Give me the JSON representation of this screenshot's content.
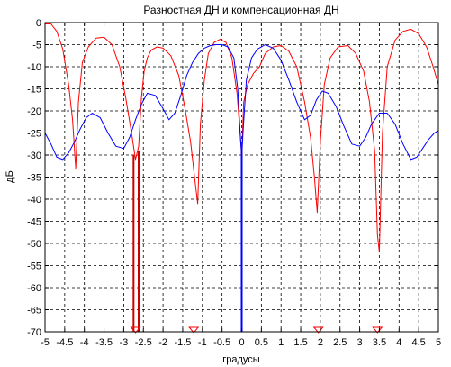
{
  "chart_data": {
    "type": "line",
    "title": "Разностная ДН и компенсационная ДН",
    "xlabel": "градусы",
    "ylabel": "дБ",
    "xlim": [
      -5,
      5
    ],
    "ylim": [
      -70,
      0
    ],
    "grid": true,
    "grid_style": "dashed",
    "x_ticks": [
      -5,
      -4.5,
      -4,
      -3.5,
      -3,
      -2.5,
      -2,
      -1.5,
      -1,
      -0.5,
      0,
      0.5,
      1,
      1.5,
      2,
      2.5,
      3,
      3.5,
      4,
      4.5,
      5
    ],
    "x_tick_labels": [
      "-5",
      "-4.5",
      "-4",
      "-3.5",
      "-3",
      "-2.5",
      "-2",
      "-1.5",
      "-1",
      "-0.5",
      "0",
      "0.5",
      "1",
      "1.5",
      "2",
      "2.5",
      "3",
      "3.5",
      "4",
      "4.5",
      "5"
    ],
    "y_ticks": [
      0,
      -5,
      -10,
      -15,
      -20,
      -25,
      -30,
      -35,
      -40,
      -45,
      -50,
      -55,
      -60,
      -65,
      -70
    ],
    "y_tick_labels": [
      "0",
      "-5",
      "-10",
      "-15",
      "-20",
      "-25",
      "-30",
      "-35",
      "-40",
      "-45",
      "-50",
      "-55",
      "-60",
      "-65",
      "-70"
    ],
    "series": [
      {
        "color": "#ff0000",
        "x": [
          -5,
          -4.85,
          -4.7,
          -4.55,
          -4.4,
          -4.3,
          -4.22,
          -4.15,
          -4.05,
          -3.9,
          -3.7,
          -3.5,
          -3.3,
          -3.1,
          -2.95,
          -2.8,
          -2.7,
          -2.62,
          -2.55,
          -2.48,
          -2.4,
          -2.3,
          -2.15,
          -2.0,
          -1.8,
          -1.6,
          -1.45,
          -1.3,
          -1.2,
          -1.12,
          -1.05,
          -0.95,
          -0.85,
          -0.7,
          -0.55,
          -0.4,
          -0.25,
          -0.12,
          -0.05,
          0,
          0.05,
          0.15,
          0.3,
          0.45,
          0.6,
          0.8,
          1.0,
          1.2,
          1.4,
          1.6,
          1.75,
          1.85,
          1.92,
          2.0,
          2.1,
          2.25,
          2.45,
          2.7,
          2.9,
          3.1,
          3.25,
          3.38,
          3.45,
          3.5,
          3.58,
          3.7,
          3.9,
          4.1,
          4.3,
          4.5,
          4.7,
          4.85,
          5.0
        ],
        "y": [
          -0.3,
          -0.3,
          -2,
          -6,
          -14,
          -22,
          -33,
          -18,
          -9,
          -5.5,
          -3.5,
          -3.3,
          -5,
          -10,
          -17,
          -25,
          -31,
          -28,
          -17,
          -11,
          -8,
          -6.2,
          -5.5,
          -5.8,
          -7.5,
          -12,
          -19,
          -27,
          -35,
          -41,
          -23,
          -13,
          -7,
          -4.5,
          -3.8,
          -4.5,
          -8,
          -16,
          -24,
          -30,
          -18,
          -14,
          -11.5,
          -10,
          -7,
          -5.5,
          -5.2,
          -6.5,
          -10,
          -18,
          -26,
          -35,
          -43,
          -27,
          -14,
          -8,
          -5.5,
          -5.2,
          -7,
          -11,
          -18,
          -29,
          -48,
          -52,
          -25,
          -10,
          -4,
          -2,
          -1.5,
          -2.5,
          -5.5,
          -9.5,
          -14
        ]
      },
      {
        "color": "#0000ff",
        "x": [
          -5,
          -4.85,
          -4.7,
          -4.55,
          -4.4,
          -4.25,
          -4.1,
          -3.95,
          -3.8,
          -3.6,
          -3.4,
          -3.2,
          -3.0,
          -2.85,
          -2.7,
          -2.55,
          -2.4,
          -2.2,
          -2.0,
          -1.85,
          -1.7,
          -1.55,
          -1.4,
          -1.25,
          -1.1,
          -0.95,
          -0.8,
          -0.65,
          -0.5,
          -0.35,
          -0.2,
          -0.1,
          -0.04,
          0,
          0.04,
          0.12,
          0.25,
          0.4,
          0.6,
          0.8,
          1.0,
          1.2,
          1.4,
          1.6,
          1.75,
          1.9,
          2.05,
          2.2,
          2.4,
          2.6,
          2.8,
          3.0,
          3.15,
          3.3,
          3.5,
          3.7,
          3.9,
          4.1,
          4.3,
          4.45,
          4.6,
          4.75,
          4.9,
          5.0
        ],
        "y": [
          -25,
          -27.5,
          -30.5,
          -31,
          -29.5,
          -27,
          -24,
          -21.5,
          -20.5,
          -21.5,
          -25,
          -28,
          -28.5,
          -26,
          -22,
          -18.5,
          -16,
          -16.5,
          -19.5,
          -22,
          -20.5,
          -16.5,
          -12,
          -9,
          -7,
          -5.8,
          -5.2,
          -5,
          -5,
          -5.5,
          -8,
          -15,
          -25,
          -30.5,
          -24,
          -13,
          -8,
          -6,
          -5,
          -5.8,
          -8.5,
          -13,
          -18,
          -22,
          -21,
          -17.5,
          -15.5,
          -16,
          -19,
          -23.5,
          -27.5,
          -28,
          -26,
          -23,
          -20.5,
          -20.5,
          -23,
          -27.5,
          -31,
          -30.5,
          -28.5,
          -26.5,
          -25,
          -24.5
        ]
      }
    ],
    "stems": [
      {
        "x": -2.75,
        "y": -30,
        "color": "#cc0000"
      },
      {
        "x": -2.62,
        "y": -29,
        "color": "#cc0000"
      },
      {
        "x": 0,
        "y": -27,
        "color": "#0000ff"
      }
    ],
    "markers": [
      {
        "x": -2.7,
        "y": -70,
        "color": "#ff0000",
        "shape": "triangle-down"
      },
      {
        "x": -1.22,
        "y": -70,
        "color": "#ff0000",
        "shape": "triangle-down"
      },
      {
        "x": 1.95,
        "y": -70,
        "color": "#ff0000",
        "shape": "triangle-down"
      },
      {
        "x": 3.45,
        "y": -70,
        "color": "#ff0000",
        "shape": "triangle-down"
      }
    ]
  }
}
